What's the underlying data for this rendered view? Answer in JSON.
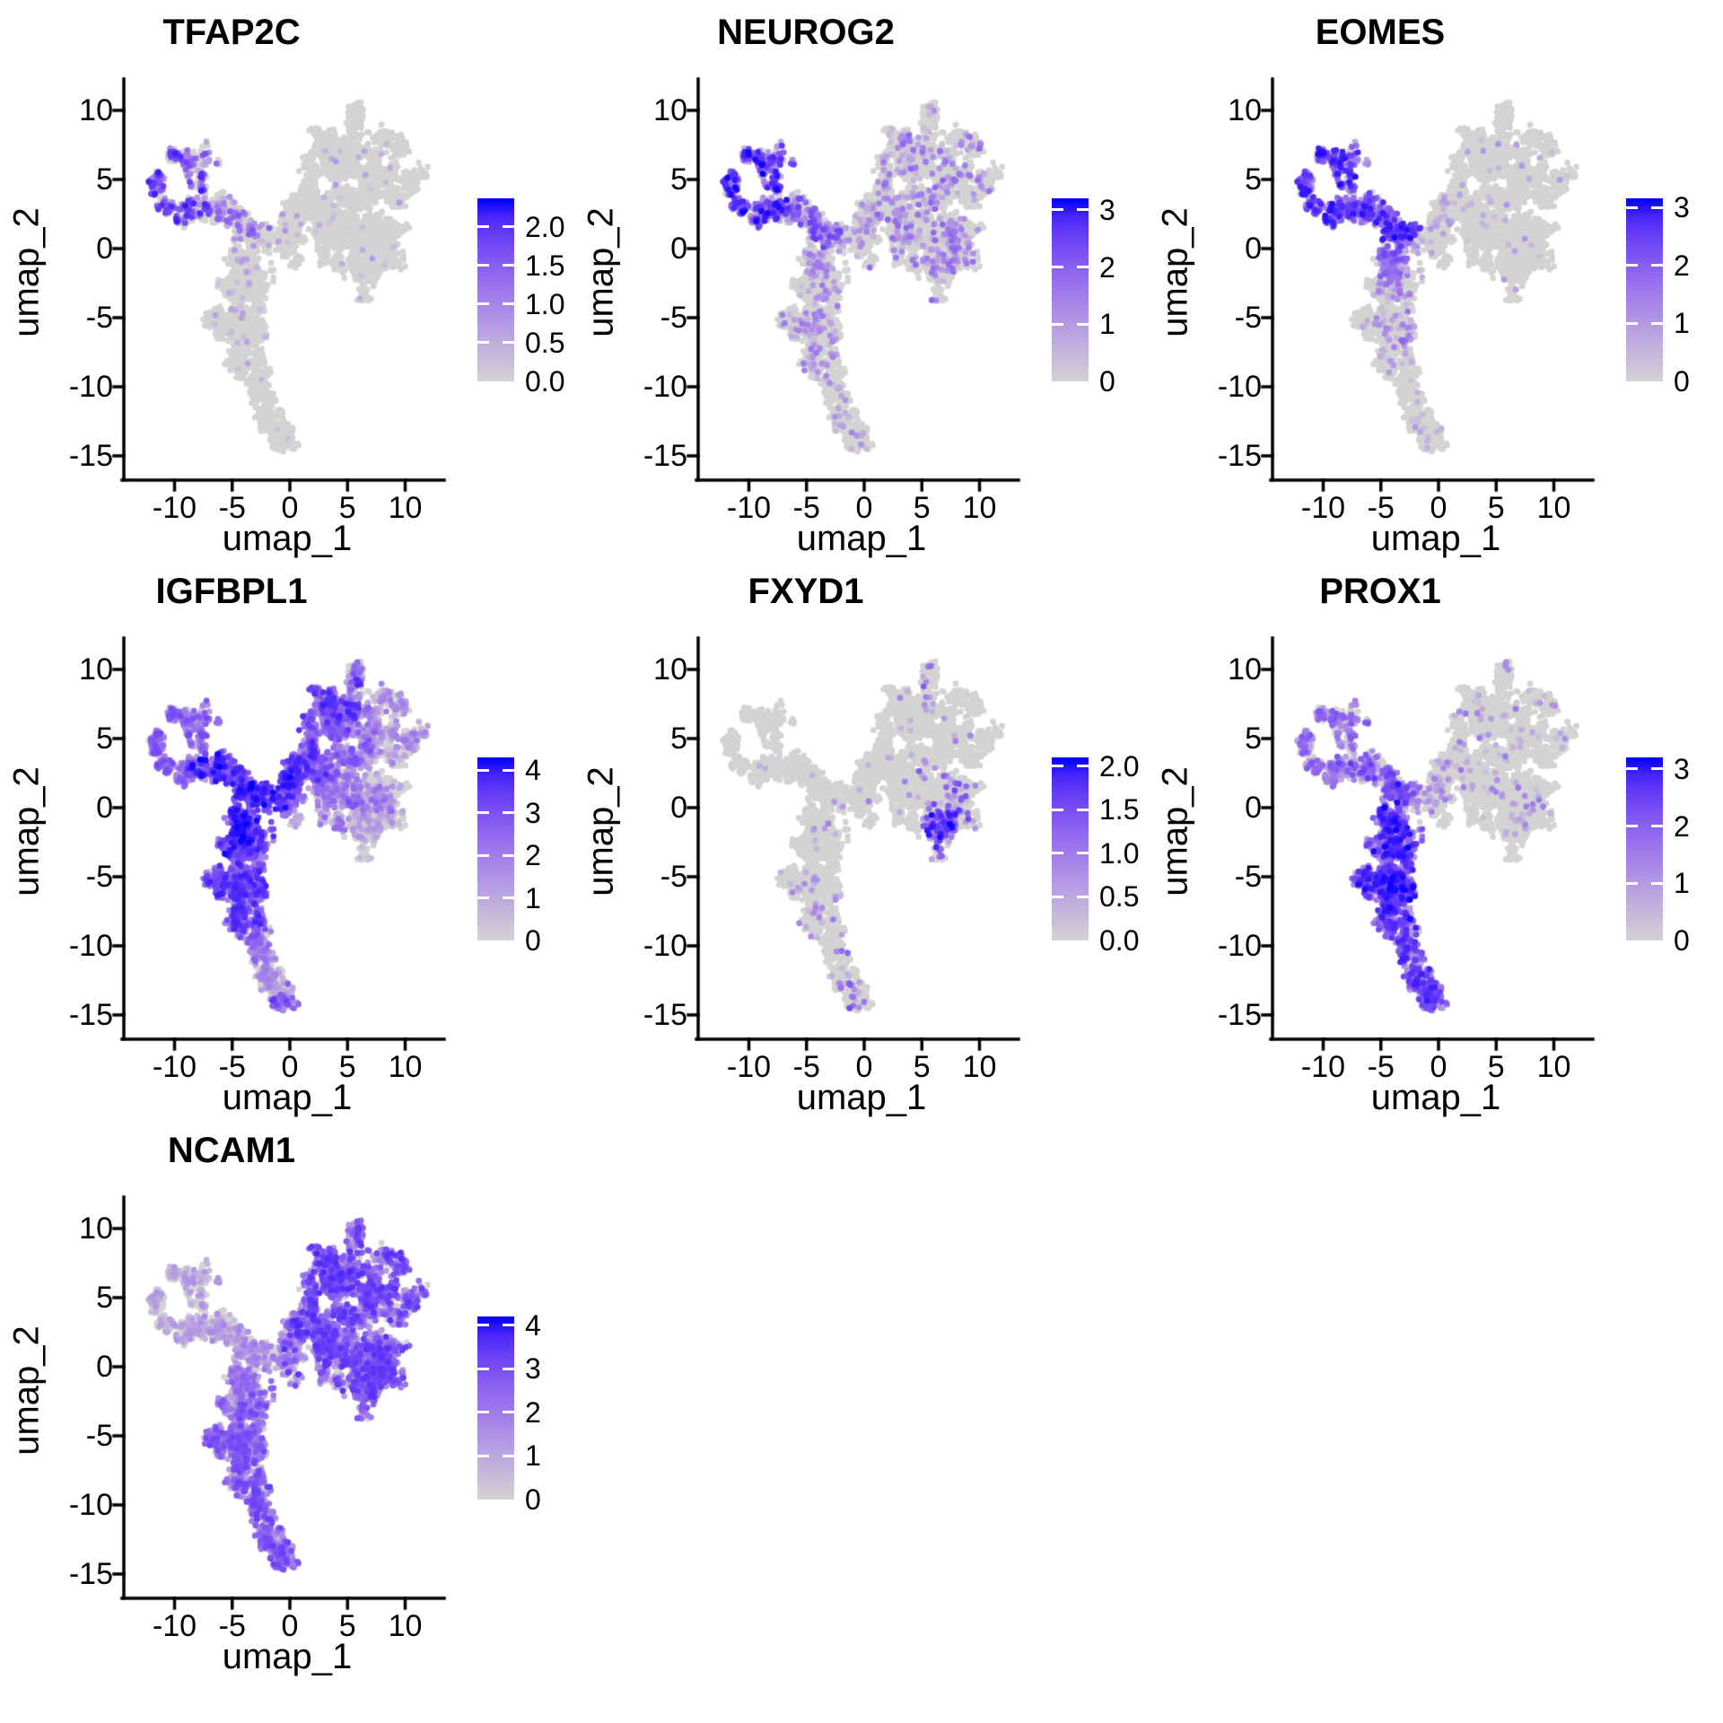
{
  "chart_data": {
    "type": "scatter",
    "subtype": "umap_feature_plot_grid",
    "title": "",
    "xlabel": "umap_1",
    "ylabel": "umap_2",
    "x_ticks": [
      {
        "v": -10,
        "label": "-10"
      },
      {
        "v": -5,
        "label": "-5"
      },
      {
        "v": 0,
        "label": "0"
      },
      {
        "v": 5,
        "label": "5"
      },
      {
        "v": 10,
        "label": "10"
      }
    ],
    "y_ticks": [
      {
        "v": 10,
        "label": "10"
      },
      {
        "v": 5,
        "label": "5"
      },
      {
        "v": 0,
        "label": "0"
      },
      {
        "v": -5,
        "label": "-5"
      },
      {
        "v": -10,
        "label": "-10"
      },
      {
        "v": -15,
        "label": "-15"
      }
    ],
    "xlim": [
      -14.4,
      13.4
    ],
    "ylim": [
      -16.8,
      12.3
    ],
    "grid": false,
    "legend_position": "right",
    "color_low": "#D3D3D3",
    "color_high": "#0000FF",
    "background": "#FFFFFF",
    "point_radius_px": 3.4,
    "seed": 42,
    "panels": [
      {
        "title": "TFAP2C",
        "grid": [
          0,
          0
        ],
        "scale_max": 2.37,
        "legend": [
          {
            "label": "2.0",
            "v": 2.0
          },
          {
            "label": "1.5",
            "v": 1.5
          },
          {
            "label": "1.0",
            "v": 1.0
          },
          {
            "label": "0.5",
            "v": 0.5
          },
          {
            "label": "0.0",
            "v": 0.0
          }
        ],
        "rules": {
          "ring": [
            0.5,
            0.4,
            2.3
          ],
          "bridge": [
            0.22,
            0.3,
            1.6
          ],
          "connector": [
            0.05,
            0.3,
            0.9
          ],
          "stemTop": [
            0.03,
            0.2,
            0.8
          ],
          "stemMid": [
            0.02,
            0.2,
            0.7
          ],
          "tail": [
            0.015,
            0.2,
            0.6
          ],
          "blob": [
            0.012,
            0.2,
            0.8
          ]
        },
        "overrides": {
          "ringKnotTop": [
            0.35,
            0.3,
            1.8
          ]
        }
      },
      {
        "title": "NEUROG2",
        "grid": [
          0,
          1
        ],
        "scale_max": 3.2,
        "legend": [
          {
            "label": "3",
            "v": 3
          },
          {
            "label": "2",
            "v": 2
          },
          {
            "label": "1",
            "v": 1
          },
          {
            "label": "0",
            "v": 0
          }
        ],
        "rules": {
          "ring": [
            0.8,
            0.6,
            3.2
          ],
          "bridge": [
            0.5,
            0.5,
            2.6
          ],
          "connector": [
            0.18,
            0.4,
            1.5
          ],
          "stemTop": [
            0.14,
            0.3,
            1.6
          ],
          "stemMid": [
            0.11,
            0.3,
            1.6
          ],
          "tail": [
            0.1,
            0.3,
            1.4
          ],
          "blob": [
            0.13,
            0.3,
            1.9
          ]
        },
        "overrides": {}
      },
      {
        "title": "EOMES",
        "grid": [
          0,
          2
        ],
        "scale_max": 3.16,
        "legend": [
          {
            "label": "3",
            "v": 3
          },
          {
            "label": "2",
            "v": 2
          },
          {
            "label": "1",
            "v": 1
          },
          {
            "label": "0",
            "v": 0
          }
        ],
        "rules": {
          "ring": [
            0.88,
            0.8,
            3.1
          ],
          "bridge": [
            0.85,
            0.8,
            3.1
          ],
          "connector": [
            0.15,
            0.4,
            1.3
          ],
          "stemTop": [
            0.75,
            0.6,
            2.8,
            0.25,
            0.6
          ],
          "stemMid": [
            0.06,
            0.3,
            1.4
          ],
          "tail": [
            0.025,
            0.3,
            1.0
          ],
          "blob": [
            0.012,
            0.3,
            1.2
          ]
        },
        "overrides": {
          "stemEast": [
            0.3,
            0.4,
            2.0
          ]
        }
      },
      {
        "title": "IGFBPL1",
        "grid": [
          1,
          0
        ],
        "scale_max": 4.3,
        "legend": [
          {
            "label": "4",
            "v": 4
          },
          {
            "label": "3",
            "v": 3
          },
          {
            "label": "2",
            "v": 2
          },
          {
            "label": "1",
            "v": 1
          },
          {
            "label": "0",
            "v": 0
          }
        ],
        "rules": {
          "ring": [
            0.88,
            1.0,
            3.2
          ],
          "bridge": [
            0.97,
            2.0,
            4.3
          ],
          "connector": [
            0.95,
            2.0,
            4.3
          ],
          "stemTop": [
            0.97,
            2.0,
            4.3
          ],
          "stemMid": [
            0.95,
            1.5,
            4.0
          ],
          "tail": [
            0.92,
            1.2,
            3.6,
            0.3,
            0.3
          ],
          "blob": [
            0.55,
            0.5,
            2.6
          ]
        },
        "overrides": {
          "fanUpper": [
            0.92,
            1.5,
            4.0
          ],
          "midMass": [
            0.8,
            1.0,
            3.2
          ],
          "topMass": [
            0.78,
            1.0,
            3.2
          ],
          "rightMass": [
            0.45,
            0.4,
            2.0
          ],
          "lowerRight": [
            0.3,
            0.3,
            1.6
          ],
          "bottomLobe": [
            0.3,
            0.3,
            1.6
          ],
          "topRightLump": [
            0.5,
            0.5,
            2.0
          ],
          "armRight": [
            0.55,
            0.5,
            2.2
          ],
          "spike": [
            0.7,
            0.8,
            2.6
          ],
          "lowerMass": [
            0.6,
            0.5,
            2.6
          ]
        }
      },
      {
        "title": "FXYD1",
        "grid": [
          1,
          1
        ],
        "scale_max": 2.1,
        "legend": [
          {
            "label": "2.0",
            "v": 2.0
          },
          {
            "label": "1.5",
            "v": 1.5
          },
          {
            "label": "1.0",
            "v": 1.0
          },
          {
            "label": "0.5",
            "v": 0.5
          },
          {
            "label": "0.0",
            "v": 0.0
          }
        ],
        "rules": {
          "ring": [
            0.01,
            0.3,
            0.8
          ],
          "bridge": [
            0.012,
            0.3,
            0.8
          ],
          "connector": [
            0.01,
            0.3,
            0.8
          ],
          "stemTop": [
            0.012,
            0.3,
            0.9
          ],
          "stemMid": [
            0.025,
            0.3,
            1.0
          ],
          "tail": [
            0.02,
            0.3,
            1.4,
            0.09,
            1.0
          ],
          "blob": [
            0.012,
            0.3,
            1.0
          ]
        },
        "overrides": {
          "bottomLobe": [
            0.5,
            0.5,
            2.1
          ],
          "lowerRight": [
            0.1,
            0.3,
            1.7
          ],
          "spike": [
            0.12,
            0.4,
            1.4
          ],
          "tailTip": [
            0.12,
            0.4,
            1.6
          ]
        }
      },
      {
        "title": "PROX1",
        "grid": [
          1,
          2
        ],
        "scale_max": 3.2,
        "legend": [
          {
            "label": "3",
            "v": 3
          },
          {
            "label": "2",
            "v": 2
          },
          {
            "label": "1",
            "v": 1
          },
          {
            "label": "0",
            "v": 0
          }
        ],
        "rules": {
          "ring": [
            0.55,
            0.5,
            2.2
          ],
          "bridge": [
            0.6,
            0.6,
            2.6
          ],
          "connector": [
            0.25,
            0.4,
            1.5
          ],
          "stemTop": [
            0.85,
            1.0,
            3.2
          ],
          "stemMid": [
            0.88,
            1.0,
            3.2
          ],
          "tail": [
            0.85,
            0.8,
            3.0
          ],
          "blob": [
            0.04,
            0.3,
            1.6
          ]
        },
        "overrides": {}
      },
      {
        "title": "NCAM1",
        "grid": [
          2,
          0
        ],
        "scale_max": 4.2,
        "legend": [
          {
            "label": "4",
            "v": 4
          },
          {
            "label": "3",
            "v": 3
          },
          {
            "label": "2",
            "v": 2
          },
          {
            "label": "1",
            "v": 1
          },
          {
            "label": "0",
            "v": 0
          }
        ],
        "rules": {
          "ring": [
            0.3,
            0.4,
            1.5
          ],
          "bridge": [
            0.45,
            0.4,
            1.8
          ],
          "connector": [
            0.6,
            0.5,
            2.2
          ],
          "stemTop": [
            0.7,
            0.6,
            2.6
          ],
          "stemMid": [
            0.82,
            0.8,
            3.2
          ],
          "tail": [
            0.86,
            1.0,
            3.4
          ],
          "blob": [
            0.85,
            1.0,
            3.6
          ]
        },
        "overrides": {
          "ringKnotTop": [
            0.4,
            0.4,
            1.6
          ],
          "fanUpper": [
            0.88,
            1.2,
            3.8
          ]
        }
      }
    ],
    "clusters": [
      {
        "name": "ring",
        "group": "ring",
        "kind": "ring",
        "c": [
          -9.7,
          4.4
        ],
        "r": 1.85,
        "rj": 0.35,
        "ell": [
          1.0,
          1.15
        ],
        "n": 400
      },
      {
        "name": "ringKnotTop",
        "group": "ring",
        "kind": "blob",
        "c": [
          -8.4,
          6.5
        ],
        "s": [
          0.55,
          0.4
        ],
        "n": 70
      },
      {
        "name": "ringKnotBR",
        "group": "ring",
        "kind": "blob",
        "c": [
          -8.2,
          2.7
        ],
        "s": [
          0.55,
          0.5
        ],
        "n": 80
      },
      {
        "name": "bridge",
        "group": "bridge",
        "kind": "path",
        "pts": [
          [
            -7.9,
            3.1
          ],
          [
            -6.2,
            2.9
          ],
          [
            -4.9,
            2.3
          ],
          [
            -3.8,
            1.6
          ]
        ],
        "s": 0.48,
        "n": 300
      },
      {
        "name": "neck",
        "group": "bridge",
        "kind": "blob",
        "c": [
          -3.3,
          0.8
        ],
        "s": [
          0.5,
          0.55
        ],
        "n": 90
      },
      {
        "name": "connector",
        "group": "connector",
        "kind": "path",
        "pts": [
          [
            -2.5,
            0.8
          ],
          [
            -1.2,
            0.6
          ],
          [
            -0.2,
            0.7
          ]
        ],
        "s": 0.3,
        "n": 80
      },
      {
        "name": "connectorBlob",
        "group": "connector",
        "kind": "blob",
        "c": [
          0.3,
          1.4
        ],
        "s": [
          0.55,
          0.65
        ],
        "n": 110
      },
      {
        "name": "stemTop",
        "group": "stemTop",
        "kind": "path",
        "pts": [
          [
            -3.7,
            0.4
          ],
          [
            -4.1,
            -1.2
          ],
          [
            -4.3,
            -2.6
          ]
        ],
        "s": 0.68,
        "n": 380
      },
      {
        "name": "stemMid",
        "group": "stemMid",
        "kind": "path",
        "pts": [
          [
            -4.4,
            -3.2
          ],
          [
            -4.6,
            -4.8
          ],
          [
            -4.3,
            -6.2
          ],
          [
            -3.9,
            -7.4
          ]
        ],
        "s": 0.9,
        "n": 700
      },
      {
        "name": "stemEast",
        "group": "stemMid",
        "kind": "path",
        "pts": [
          [
            -2.6,
            -1.4
          ],
          [
            -2.4,
            -3.2
          ],
          [
            -2.5,
            -5.2
          ],
          [
            -2.9,
            -6.8
          ]
        ],
        "s": 0.38,
        "n": 150
      },
      {
        "name": "tail",
        "group": "tail",
        "kind": "path",
        "pts": [
          [
            -3.6,
            -8.3
          ],
          [
            -3.0,
            -9.9
          ],
          [
            -2.3,
            -11.3
          ],
          [
            -1.5,
            -12.6
          ],
          [
            -0.8,
            -13.7
          ]
        ],
        "s": 0.48,
        "n": 430
      },
      {
        "name": "tailTip",
        "group": "tail",
        "kind": "blob",
        "c": [
          -0.6,
          -13.9
        ],
        "s": [
          0.38,
          0.3
        ],
        "n": 50
      },
      {
        "name": "fanUpper",
        "group": "blob",
        "kind": "path",
        "pts": [
          [
            0.8,
            2.4
          ],
          [
            2.2,
            4.6
          ],
          [
            3.6,
            6.6
          ],
          [
            4.8,
            8.2
          ]
        ],
        "s": 0.9,
        "n": 450
      },
      {
        "name": "topMass",
        "group": "blob",
        "kind": "blob",
        "c": [
          4.2,
          6.3
        ],
        "s": [
          1.5,
          1.1
        ],
        "n": 380
      },
      {
        "name": "spike",
        "group": "blob",
        "kind": "path",
        "pts": [
          [
            5.5,
            8.8
          ],
          [
            5.8,
            10.4
          ]
        ],
        "s": 0.22,
        "n": 55
      },
      {
        "name": "topRightLump",
        "group": "blob",
        "kind": "blob",
        "c": [
          8.6,
          7.5
        ],
        "s": [
          0.75,
          0.55
        ],
        "n": 110
      },
      {
        "name": "rightMass",
        "group": "blob",
        "kind": "blob",
        "c": [
          7.9,
          4.8
        ],
        "s": [
          1.35,
          1.05
        ],
        "n": 380
      },
      {
        "name": "armRight",
        "group": "blob",
        "kind": "path",
        "pts": [
          [
            10.3,
            4.9
          ],
          [
            11.5,
            5.15
          ]
        ],
        "s": 0.34,
        "n": 70
      },
      {
        "name": "midMass",
        "group": "blob",
        "kind": "blob",
        "c": [
          3.4,
          3.1
        ],
        "s": [
          1.7,
          1.15
        ],
        "n": 430
      },
      {
        "name": "lowerMass",
        "group": "blob",
        "kind": "blob",
        "c": [
          3.9,
          0.7
        ],
        "s": [
          2.1,
          1.05
        ],
        "n": 520
      },
      {
        "name": "lowerRight",
        "group": "blob",
        "kind": "blob",
        "c": [
          7.8,
          0.4
        ],
        "s": [
          1.45,
          1.15
        ],
        "n": 430
      },
      {
        "name": "bottomLobe",
        "group": "blob",
        "kind": "blob",
        "c": [
          6.8,
          -1.6
        ],
        "s": [
          0.85,
          0.75
        ],
        "n": 230
      }
    ],
    "holes": [
      [
        -9.7,
        4.35,
        1.1
      ],
      [
        2.9,
        4.7,
        0.7
      ],
      [
        5.7,
        4.7,
        0.5
      ],
      [
        7.9,
        3.2,
        0.45
      ],
      [
        2.4,
        6.4,
        0.4
      ],
      [
        6.5,
        6.3,
        0.38
      ],
      [
        4.9,
        -0.3,
        0.45
      ],
      [
        1.7,
        1.8,
        0.4
      ]
    ]
  }
}
